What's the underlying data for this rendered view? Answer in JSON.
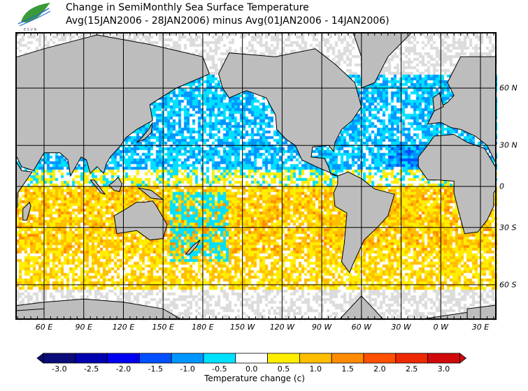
{
  "title": {
    "line1": "Change in SemiMonthly Sea Surface Temperature",
    "line2": "Avg(15JAN2006 - 28JAN2006) minus Avg(01JAN2006 - 14JAN2006)"
  },
  "logo": {
    "icon": "leaf-wave-logo",
    "text": "ESVN"
  },
  "map": {
    "lon_labels": [
      "60 E",
      "90 E",
      "120 E",
      "150 E",
      "180 E",
      "150 W",
      "120 W",
      "90 W",
      "60 W",
      "30 W",
      "0 W",
      "30 E"
    ],
    "lon_values": [
      60,
      90,
      120,
      150,
      180,
      210,
      240,
      270,
      300,
      330,
      360,
      390
    ],
    "lat_labels": [
      "60 N",
      "30 N",
      "0",
      "30 S",
      "60 S"
    ],
    "lat_values": [
      60,
      30,
      0,
      -30,
      -60
    ]
  },
  "colorbar": {
    "title": "Temperature change  (c)",
    "labels": [
      "-3.0",
      "-2.5",
      "-2.0",
      "-1.5",
      "-1.0",
      "-0.5",
      "0.0",
      "0.5",
      "1.0",
      "1.5",
      "2.0",
      "2.5",
      "3.0"
    ],
    "colors": [
      "#0a0a78",
      "#0000b0",
      "#0000f0",
      "#0050ff",
      "#0096ff",
      "#00e0ff",
      "#ffffff",
      "#ffee00",
      "#ffbe00",
      "#ff8c00",
      "#ff5000",
      "#ee2800",
      "#d00a0a"
    ],
    "land_color": "#bdbdbd",
    "nodata_color": "#dcdcdc"
  }
}
